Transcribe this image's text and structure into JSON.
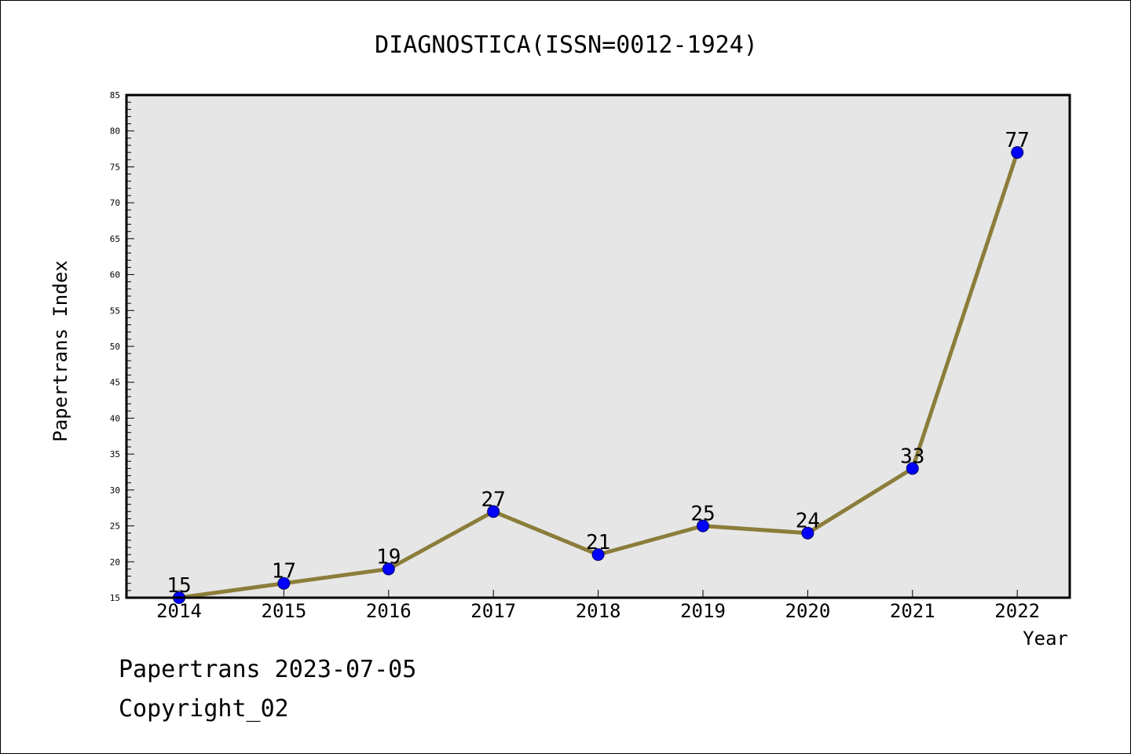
{
  "chart_data": {
    "type": "line",
    "title": "DIAGNOSTICA(ISSN=0012-1924)",
    "xlabel": "Year",
    "ylabel": "Papertrans Index",
    "categories": [
      "2014",
      "2015",
      "2016",
      "2017",
      "2018",
      "2019",
      "2020",
      "2021",
      "2022"
    ],
    "series": [
      {
        "values": [
          15,
          17,
          19,
          27,
          21,
          25,
          24,
          33,
          77
        ]
      }
    ],
    "data_labels": [
      "15",
      "17",
      "19",
      "27",
      "21",
      "25",
      "24",
      "33",
      "77"
    ],
    "ylim": [
      15,
      85
    ],
    "yticks": [
      "15",
      "20",
      "25",
      "30",
      "35",
      "40",
      "45",
      "50",
      "55",
      "60",
      "65",
      "70",
      "75",
      "80",
      "85"
    ],
    "grid": false,
    "legend": "none",
    "colors": {
      "plot_background": "#e6e6e6",
      "line": "#8b7d3a",
      "marker": "#0000ff",
      "marker_edge": "#000066"
    }
  },
  "footer": {
    "date_line": "Papertrans 2023-07-05",
    "copyright": "Copyright_02"
  }
}
